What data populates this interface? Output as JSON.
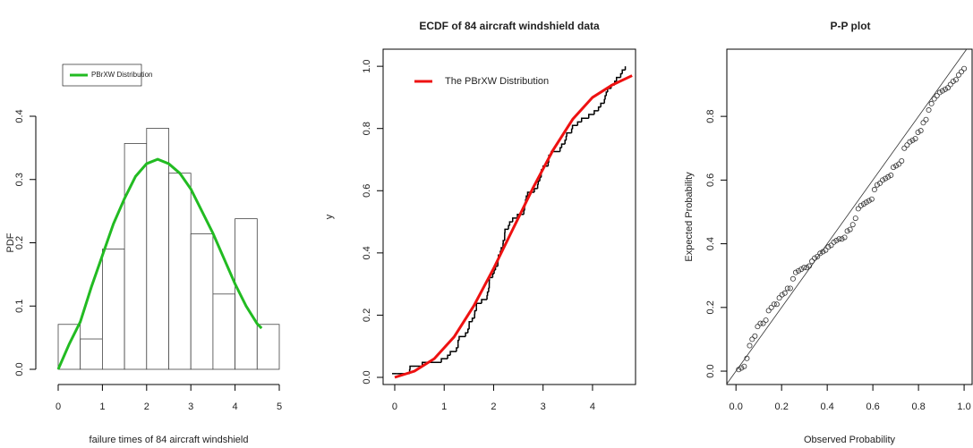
{
  "chart_data": [
    {
      "type": "histogram",
      "xlabel": "failure times of 84 aircraft windshield",
      "ylabel": "PDF",
      "bins": [
        0,
        0.5,
        1,
        1.5,
        2,
        2.5,
        3,
        3.5,
        4,
        4.5,
        5
      ],
      "values": [
        0.071,
        0.048,
        0.19,
        0.357,
        0.381,
        0.31,
        0.214,
        0.119,
        0.238,
        0.071
      ],
      "color": "#ffffff",
      "series": [
        {
          "name": "PBrXW Distribution",
          "color": "#22bb22",
          "x": [
            0,
            0.25,
            0.5,
            0.75,
            1,
            1.25,
            1.5,
            1.75,
            2,
            2.25,
            2.5,
            2.75,
            3,
            3.25,
            3.5,
            3.75,
            4,
            4.25,
            4.5,
            4.6
          ],
          "values": [
            0,
            0.04,
            0.075,
            0.13,
            0.18,
            0.23,
            0.27,
            0.305,
            0.325,
            0.332,
            0.325,
            0.31,
            0.285,
            0.25,
            0.215,
            0.175,
            0.135,
            0.1,
            0.072,
            0.065
          ]
        }
      ],
      "xlim": [
        0,
        5
      ],
      "xticks": [
        0,
        1,
        2,
        3,
        4,
        5
      ],
      "ylim": [
        0,
        0.4
      ],
      "yticks": [
        {
          "value": 0,
          "label": "0.0"
        },
        0.1,
        0.2,
        0.3,
        0.4
      ],
      "legend": "topleft",
      "legend_box": true,
      "box": false
    },
    {
      "type": "ecdf",
      "title": "ECDF of 84 aircraft windshield data",
      "ylabel": "y",
      "ecdf": {
        "color": "#000000",
        "x": [
          0.04,
          0.301,
          0.309,
          0.557,
          0.943,
          1.07,
          1.124,
          1.248,
          1.281,
          1.281,
          1.303,
          1.432,
          1.48,
          1.505,
          1.506,
          1.568,
          1.615,
          1.619,
          1.652,
          1.652,
          1.757,
          1.866,
          1.876,
          1.899,
          1.911,
          1.912,
          1.914,
          1.981,
          2.01,
          2.038,
          2.085,
          2.089,
          2.097,
          2.135,
          2.154,
          2.19,
          2.194,
          2.223,
          2.224,
          2.229,
          2.3,
          2.324,
          2.385,
          2.481,
          2.61,
          2.625,
          2.632,
          2.646,
          2.661,
          2.688,
          2.823,
          2.89,
          2.902,
          2.934,
          2.962,
          2.964,
          3.0,
          3.103,
          3.114,
          3.117,
          3.166,
          3.344,
          3.376,
          3.443,
          3.467,
          3.478,
          3.578,
          3.595,
          3.699,
          3.779,
          3.924,
          4.035,
          4.121,
          4.167,
          4.24,
          4.255,
          4.278,
          4.305,
          4.376,
          4.449,
          4.485,
          4.57,
          4.602,
          4.663
        ],
        "values": [
          0.012,
          0.024,
          0.036,
          0.048,
          0.06,
          0.071,
          0.083,
          0.095,
          0.107,
          0.119,
          0.131,
          0.143,
          0.155,
          0.167,
          0.179,
          0.19,
          0.202,
          0.214,
          0.226,
          0.238,
          0.25,
          0.262,
          0.274,
          0.286,
          0.298,
          0.31,
          0.321,
          0.333,
          0.345,
          0.357,
          0.369,
          0.381,
          0.393,
          0.405,
          0.417,
          0.429,
          0.44,
          0.452,
          0.464,
          0.476,
          0.488,
          0.5,
          0.512,
          0.524,
          0.536,
          0.548,
          0.56,
          0.571,
          0.583,
          0.595,
          0.607,
          0.619,
          0.631,
          0.643,
          0.655,
          0.667,
          0.679,
          0.69,
          0.702,
          0.714,
          0.726,
          0.738,
          0.75,
          0.762,
          0.774,
          0.786,
          0.798,
          0.81,
          0.821,
          0.833,
          0.845,
          0.857,
          0.869,
          0.881,
          0.893,
          0.905,
          0.917,
          0.929,
          0.94,
          0.952,
          0.964,
          0.976,
          0.988,
          1
        ]
      },
      "series": [
        {
          "name": "The PBrXW Distribution",
          "color": "#ee1111",
          "x": [
            0,
            0.4,
            0.8,
            1.2,
            1.6,
            2,
            2.4,
            2.8,
            3.2,
            3.6,
            4,
            4.4,
            4.8
          ],
          "values": [
            0,
            0.02,
            0.06,
            0.13,
            0.23,
            0.35,
            0.48,
            0.61,
            0.73,
            0.83,
            0.9,
            0.94,
            0.97
          ]
        }
      ],
      "xlim": [
        -0.235,
        4.87
      ],
      "xticks": [
        0,
        1,
        2,
        3,
        4
      ],
      "ylim": [
        -0.023,
        1.055
      ],
      "yticks": [
        {
          "value": 0,
          "label": "0.0"
        },
        0.2,
        0.4,
        0.6,
        0.8,
        {
          "value": 1,
          "label": "1.0"
        }
      ],
      "legend": "topleft",
      "legend_box": false,
      "box": true
    },
    {
      "type": "scatter",
      "title": "P-P plot",
      "xlabel": "Observed Probability",
      "ylabel": "Expected Probability",
      "color": "#333333",
      "diagonal": true,
      "x": [
        0.012,
        0.024,
        0.036,
        0.048,
        0.06,
        0.071,
        0.083,
        0.095,
        0.107,
        0.119,
        0.131,
        0.143,
        0.155,
        0.167,
        0.179,
        0.19,
        0.202,
        0.214,
        0.226,
        0.238,
        0.25,
        0.262,
        0.274,
        0.286,
        0.298,
        0.31,
        0.321,
        0.333,
        0.345,
        0.357,
        0.369,
        0.381,
        0.393,
        0.405,
        0.417,
        0.429,
        0.44,
        0.452,
        0.464,
        0.476,
        0.488,
        0.5,
        0.512,
        0.524,
        0.536,
        0.548,
        0.56,
        0.571,
        0.583,
        0.595,
        0.607,
        0.619,
        0.631,
        0.643,
        0.655,
        0.667,
        0.679,
        0.69,
        0.702,
        0.714,
        0.726,
        0.738,
        0.75,
        0.762,
        0.774,
        0.786,
        0.798,
        0.81,
        0.821,
        0.833,
        0.845,
        0.857,
        0.869,
        0.881,
        0.893,
        0.905,
        0.917,
        0.929,
        0.94,
        0.952,
        0.964,
        0.976,
        0.988,
        1
      ],
      "values": [
        0.005,
        0.01,
        0.015,
        0.04,
        0.08,
        0.1,
        0.11,
        0.14,
        0.15,
        0.15,
        0.16,
        0.19,
        0.2,
        0.21,
        0.21,
        0.23,
        0.24,
        0.245,
        0.26,
        0.26,
        0.29,
        0.31,
        0.315,
        0.32,
        0.325,
        0.325,
        0.33,
        0.345,
        0.355,
        0.36,
        0.37,
        0.375,
        0.38,
        0.39,
        0.395,
        0.405,
        0.41,
        0.415,
        0.415,
        0.42,
        0.44,
        0.445,
        0.46,
        0.48,
        0.51,
        0.52,
        0.525,
        0.53,
        0.535,
        0.54,
        0.57,
        0.585,
        0.59,
        0.6,
        0.605,
        0.61,
        0.615,
        0.64,
        0.645,
        0.65,
        0.66,
        0.7,
        0.71,
        0.72,
        0.725,
        0.73,
        0.75,
        0.755,
        0.78,
        0.79,
        0.82,
        0.84,
        0.855,
        0.865,
        0.875,
        0.88,
        0.885,
        0.89,
        0.9,
        0.91,
        0.915,
        0.93,
        0.94,
        0.95
      ],
      "xlim": [
        -0.04,
        1.035
      ],
      "xticks": [
        {
          "value": 0,
          "label": "0.0"
        },
        0.2,
        0.4,
        0.6,
        0.8,
        {
          "value": 1,
          "label": "1.0"
        }
      ],
      "ylim": [
        -0.042,
        1.011
      ],
      "yticks": [
        {
          "value": 0,
          "label": "0.0"
        },
        0.2,
        0.4,
        0.6,
        0.8
      ],
      "box": true
    }
  ]
}
